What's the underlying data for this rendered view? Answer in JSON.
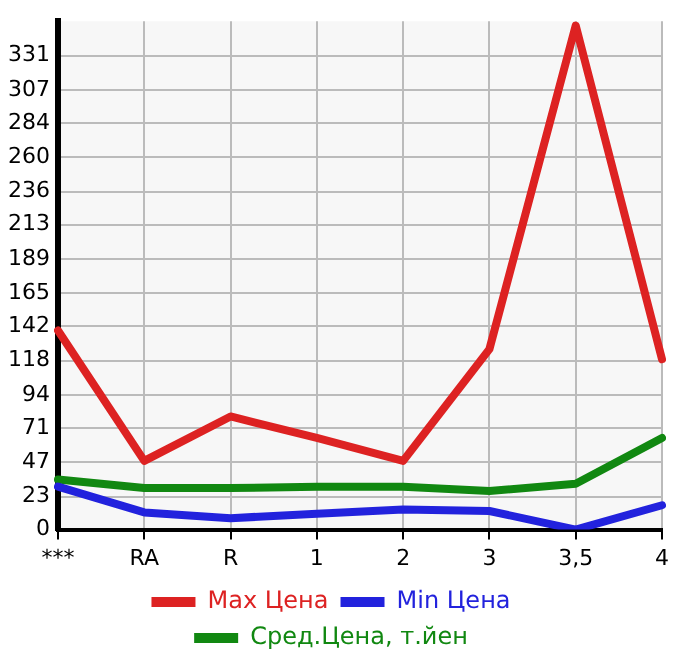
{
  "chart_data": {
    "type": "line",
    "categories": [
      "***",
      "RA",
      "R",
      "1",
      "2",
      "3",
      "3,5",
      "4"
    ],
    "series": [
      {
        "name": "Max Цена",
        "color": "#dd2222",
        "values": [
          139,
          48,
          79,
          64,
          48,
          126,
          352,
          119
        ]
      },
      {
        "name": "Min Цена",
        "color": "#2222dd",
        "values": [
          30,
          12,
          8,
          11,
          14,
          13,
          0,
          17
        ]
      },
      {
        "name": "Сред.Цена, т.йен",
        "color": "#118811",
        "values": [
          35,
          29,
          29,
          30,
          30,
          27,
          32,
          64
        ]
      }
    ],
    "ylim": [
      0,
      355
    ],
    "yticks": [
      0,
      23,
      47,
      71,
      94,
      118,
      142,
      165,
      189,
      213,
      236,
      260,
      284,
      307,
      331
    ],
    "grid": true,
    "legend": "bottom",
    "marker": "none",
    "line_style": "solid"
  }
}
